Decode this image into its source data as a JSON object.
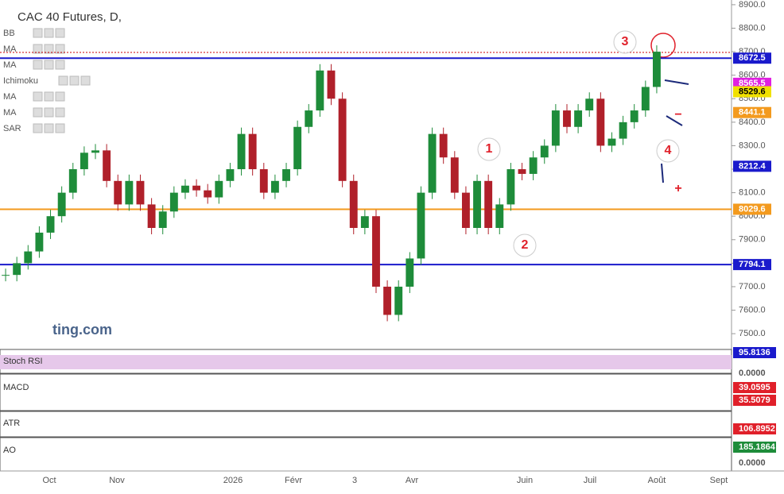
{
  "chart_data": {
    "type": "candlestick",
    "title": "CAC 40 Futures, D,",
    "indicators": [
      "BB",
      "MA",
      "MA",
      "Ichimoku",
      "MA",
      "MA",
      "SAR"
    ],
    "watermark": "ting.com",
    "x_labels": [
      "Oct",
      "Nov",
      "2026",
      "Févr",
      "3",
      "Avr",
      "Juin",
      "Juil",
      "Août",
      "Sept"
    ],
    "closes": [
      7750,
      7800,
      7850,
      7930,
      8000,
      8100,
      8200,
      8270,
      8280,
      8150,
      8050,
      8150,
      8050,
      7950,
      8020,
      8100,
      8130,
      8110,
      8080,
      8150,
      8200,
      8350,
      8200,
      8100,
      8150,
      8200,
      8380,
      8450,
      8620,
      8500,
      8150,
      7950,
      8000,
      7700,
      7580,
      7700,
      7820,
      8100,
      8350,
      8250,
      8100,
      7950,
      8150,
      7950,
      8050,
      8200,
      8180,
      8250,
      8300,
      8450,
      8380,
      8450,
      8500,
      8300,
      8330,
      8400,
      8450,
      8550,
      8700
    ],
    "up_color": "#1e8c3a",
    "down_color": "#b0202a",
    "ylim": [
      7443,
      8920
    ],
    "yticks": [
      {
        "value": 8900,
        "label": "8900.0"
      },
      {
        "value": 8800,
        "label": "8800.0"
      },
      {
        "value": 8700,
        "label": "8700.0"
      },
      {
        "value": 8600,
        "label": "8600.0"
      },
      {
        "value": 8500,
        "label": "8500.0"
      },
      {
        "value": 8400,
        "label": "8400.0"
      },
      {
        "value": 8300,
        "label": "8300.0"
      },
      {
        "value": 8200,
        "label": "8200.0"
      },
      {
        "value": 8100,
        "label": "8100.0"
      },
      {
        "value": 8000,
        "label": "8000.0"
      },
      {
        "value": 7900,
        "label": "7900.0"
      },
      {
        "value": 7800,
        "label": "7800.0"
      },
      {
        "value": 7700,
        "label": "7700.0"
      },
      {
        "value": 7600,
        "label": "7600.0"
      },
      {
        "value": 7500,
        "label": "7500.0"
      }
    ],
    "levels": [
      {
        "value": 8672.5,
        "label": "8672.5",
        "color": "#1a1acc",
        "line": true
      },
      {
        "value": 8565.5,
        "label": "8565.5",
        "color": "#e020e0",
        "line": false
      },
      {
        "value": 8529.6,
        "label": "8529.6",
        "color": "#f0e000",
        "line": false
      },
      {
        "value": 8441.1,
        "label": "8441.1",
        "color": "#f39a1e",
        "line": false
      },
      {
        "value": 8212.4,
        "label": "8212.4",
        "color": "#1a1acc",
        "line": false
      },
      {
        "value": 8029.6,
        "label": "8029.6",
        "color": "#f39a1e",
        "line": true
      },
      {
        "value": 7794.1,
        "label": "7794.1",
        "color": "#1a1acc",
        "line": true
      }
    ],
    "annotations": [
      "3",
      "1",
      "2",
      "4",
      "+",
      "−"
    ],
    "panes": [
      {
        "name": "Stoch RSI",
        "labels": [
          {
            "value": 95.8136,
            "label": "95.8136",
            "color": "#1a1acc"
          },
          {
            "value": 0,
            "label": "0.0000",
            "color": null
          }
        ]
      },
      {
        "name": "MACD",
        "labels": [
          {
            "value": 39.0595,
            "label": "39.0595",
            "color": "#e0202a"
          },
          {
            "value": 35.5079,
            "label": "35.5079",
            "color": "#e0202a"
          }
        ]
      },
      {
        "name": "ATR",
        "labels": [
          {
            "value": 106.8952,
            "label": "106.8952",
            "color": "#e0202a"
          }
        ]
      },
      {
        "name": "AO",
        "labels": [
          {
            "value": 185.1864,
            "label": "185.1864",
            "color": "#1e8c3a"
          },
          {
            "value": 0,
            "label": "0.0000",
            "color": null
          }
        ]
      }
    ]
  }
}
